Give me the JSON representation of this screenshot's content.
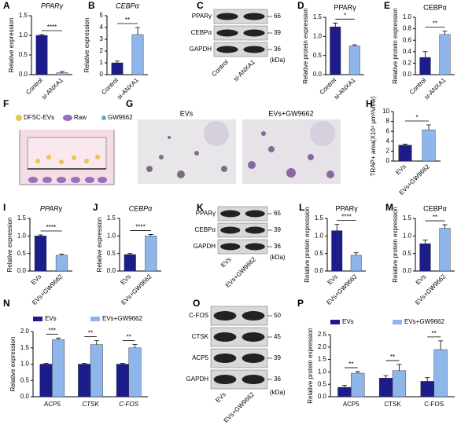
{
  "panel_labels": [
    "A",
    "B",
    "C",
    "D",
    "E",
    "F",
    "G",
    "H",
    "I",
    "J",
    "K",
    "L",
    "M",
    "N",
    "O",
    "P"
  ],
  "chart_data": [
    {
      "type": "bar",
      "title": "PPARγ",
      "italic": true,
      "ylabel": "Relative expression",
      "categories": [
        "Control",
        "si-ANXA1"
      ],
      "series": [
        {
          "colors": [
            "#1c1c8a",
            "#8fb6ea"
          ],
          "values": [
            1.0,
            0.05
          ],
          "errors": [
            0.02,
            0.03
          ]
        }
      ],
      "ylim": [
        0,
        1.5
      ],
      "yticks": [
        {
          "value": 0,
          "label": "0.0"
        },
        0.5,
        {
          "value": 1,
          "label": "1.0"
        },
        1.5
      ],
      "annotations": [
        "****"
      ]
    },
    {
      "type": "bar",
      "title": "CEBPα",
      "italic": true,
      "ylabel": "Relative expression",
      "categories": [
        "Control",
        "si-ANXA1"
      ],
      "series": [
        {
          "colors": [
            "#1c1c8a",
            "#8fb6ea"
          ],
          "values": [
            1.0,
            3.4
          ],
          "errors": [
            0.15,
            0.6
          ]
        }
      ],
      "ylim": [
        0,
        5
      ],
      "yticks": [
        0,
        1,
        2,
        3,
        4,
        5
      ],
      "annotations": [
        "**"
      ]
    },
    {
      "type": "bar",
      "title": "PPARγ",
      "ylabel": "Relative protein expression",
      "categories": [
        "Control",
        "si-ANXA1"
      ],
      "series": [
        {
          "colors": [
            "#1c1c8a",
            "#8fb6ea"
          ],
          "values": [
            1.25,
            0.75
          ],
          "errors": [
            0.1,
            0.03
          ]
        }
      ],
      "ylim": [
        0,
        1.5
      ],
      "yticks": [
        {
          "value": 0,
          "label": "0.0"
        },
        0.5,
        {
          "value": 1,
          "label": "1.0"
        },
        1.5
      ],
      "annotations": [
        "*"
      ]
    },
    {
      "type": "bar",
      "title": "CEBPα",
      "ylabel": "Relative protein expression",
      "categories": [
        "Control",
        "si-ANXA1"
      ],
      "series": [
        {
          "colors": [
            "#1c1c8a",
            "#8fb6ea"
          ],
          "values": [
            0.3,
            0.7
          ],
          "errors": [
            0.1,
            0.06
          ]
        }
      ],
      "ylim": [
        0,
        1.0
      ],
      "yticks": [
        {
          "value": 0,
          "label": "0.0"
        },
        0.2,
        0.4,
        0.6,
        0.8,
        {
          "value": 1,
          "label": "1.0"
        }
      ],
      "annotations": [
        "**"
      ]
    },
    {
      "type": "bar",
      "ylabel": "TRAP+ area(X10⁴ μm²/view)",
      "categories": [
        "EVs",
        "EVs+GW9662"
      ],
      "series": [
        {
          "colors": [
            "#1c1c8a",
            "#8fb6ea"
          ],
          "values": [
            3.2,
            6.3
          ],
          "errors": [
            0.2,
            1.0
          ]
        }
      ],
      "ylim": [
        0,
        10
      ],
      "yticks": [
        0,
        2,
        4,
        6,
        8,
        10
      ],
      "annotations": [
        "*"
      ]
    },
    {
      "type": "bar",
      "title": "PPARγ",
      "italic": true,
      "ylabel": "Relative expression",
      "categories": [
        "EVs",
        "EVs+GW9662"
      ],
      "series": [
        {
          "colors": [
            "#1c1c8a",
            "#8fb6ea"
          ],
          "values": [
            1.0,
            0.45
          ],
          "errors": [
            0.03,
            0.03
          ]
        }
      ],
      "ylim": [
        0,
        1.5
      ],
      "yticks": [
        {
          "value": 0,
          "label": "0.0"
        },
        0.5,
        {
          "value": 1,
          "label": "1.0"
        },
        1.5
      ],
      "annotations": [
        "****"
      ]
    },
    {
      "type": "bar",
      "title": "CEBPα",
      "italic": true,
      "ylabel": "Relative expression",
      "categories": [
        "EVs",
        "EVs+GW9662"
      ],
      "series": [
        {
          "colors": [
            "#1c1c8a",
            "#8fb6ea"
          ],
          "values": [
            0.47,
            1.0
          ],
          "errors": [
            0.03,
            0.04
          ]
        }
      ],
      "ylim": [
        0,
        1.5
      ],
      "yticks": [
        {
          "value": 0,
          "label": "0.0"
        },
        0.5,
        {
          "value": 1,
          "label": "1.0"
        },
        1.5
      ],
      "annotations": [
        "****"
      ]
    },
    {
      "type": "bar",
      "title": "PPARγ",
      "ylabel": "Relative protein expression",
      "categories": [
        "EVs",
        "EVs+GW9662"
      ],
      "series": [
        {
          "colors": [
            "#1c1c8a",
            "#8fb6ea"
          ],
          "values": [
            1.15,
            0.45
          ],
          "errors": [
            0.18,
            0.07
          ]
        }
      ],
      "ylim": [
        0,
        1.5
      ],
      "yticks": [
        {
          "value": 0,
          "label": "0.0"
        },
        0.5,
        {
          "value": 1,
          "label": "1.0"
        },
        1.5
      ],
      "annotations": [
        "****"
      ]
    },
    {
      "type": "bar",
      "title": "CEBPα",
      "ylabel": "Relative protein expression",
      "categories": [
        "EVs",
        "EVs+GW9662"
      ],
      "series": [
        {
          "colors": [
            "#1c1c8a",
            "#8fb6ea"
          ],
          "values": [
            0.78,
            1.22
          ],
          "errors": [
            0.1,
            0.1
          ]
        }
      ],
      "ylim": [
        0,
        1.5
      ],
      "yticks": [
        {
          "value": 0,
          "label": "0.0"
        },
        0.5,
        {
          "value": 1,
          "label": "1.0"
        },
        1.5
      ],
      "annotations": [
        "**"
      ]
    },
    {
      "type": "bar",
      "italic": true,
      "ylabel": "Relative expression",
      "categories": [
        "ACP5",
        "CTSK",
        "C-FOS"
      ],
      "series": [
        {
          "name": "EVs",
          "color": "#1c1c8a",
          "values": [
            1.0,
            1.0,
            1.0
          ],
          "errors": [
            0.02,
            0.02,
            0.02
          ]
        },
        {
          "name": "EVs+GW9662",
          "color": "#8fb6ea",
          "values": [
            1.75,
            1.6,
            1.5
          ],
          "errors": [
            0.05,
            0.12,
            0.1
          ]
        }
      ],
      "ylim": [
        0,
        2.0
      ],
      "yticks": [
        {
          "value": 0,
          "label": "0.0"
        },
        0.5,
        {
          "value": 1,
          "label": "1.0"
        },
        1.5,
        {
          "value": 2,
          "label": "2.0"
        }
      ],
      "annotations": [
        "***",
        "**",
        "**"
      ]
    },
    {
      "type": "bar",
      "ylabel": "Relative protein expression",
      "categories": [
        "ACP5",
        "CTSK",
        "C-FOS"
      ],
      "series": [
        {
          "name": "EVs",
          "color": "#1c1c8a",
          "values": [
            0.38,
            0.75,
            0.62
          ],
          "errors": [
            0.08,
            0.1,
            0.15
          ]
        },
        {
          "name": "EVs+GW9662",
          "color": "#8fb6ea",
          "values": [
            0.95,
            1.05,
            1.9
          ],
          "errors": [
            0.06,
            0.25,
            0.35
          ]
        }
      ],
      "ylim": [
        0,
        2.5
      ],
      "yticks": [
        {
          "value": 0,
          "label": "0.0"
        },
        0.5,
        {
          "value": 1,
          "label": "1.0"
        },
        1.5,
        {
          "value": 2,
          "label": "2.0"
        },
        2.5
      ],
      "annotations": [
        "**",
        "**",
        "**"
      ]
    }
  ],
  "blots": [
    {
      "rows": [
        {
          "label": "PPARγ",
          "kda": 66
        },
        {
          "label": "CEBPα",
          "kda": 39
        },
        {
          "label": "GAPDH",
          "kda": 36
        }
      ],
      "unit": "(kDa)",
      "lanes": [
        "Control",
        "si-ANXA1"
      ]
    },
    {
      "rows": [
        {
          "label": "PPARγ",
          "kda": 65
        },
        {
          "label": "CEBPα",
          "kda": 39
        },
        {
          "label": "GAPDH",
          "kda": 36
        }
      ],
      "unit": "(kDa)",
      "lanes": [
        "EVs",
        "EVs+GW9662"
      ]
    },
    {
      "rows": [
        {
          "label": "C-FOS",
          "kda": 50
        },
        {
          "label": "CTSK",
          "kda": 45
        },
        {
          "label": "ACP5",
          "kda": 39
        },
        {
          "label": "GAPDH",
          "kda": 36
        }
      ],
      "unit": "(kDa)",
      "lanes": [
        "EVs",
        "EVs+GW9662"
      ]
    }
  ],
  "diagram": {
    "legend": [
      "DFSC-EVs",
      "Raw",
      "GW9662"
    ]
  },
  "images": {
    "labels": [
      "EVs",
      "EVs+GW9662"
    ]
  }
}
